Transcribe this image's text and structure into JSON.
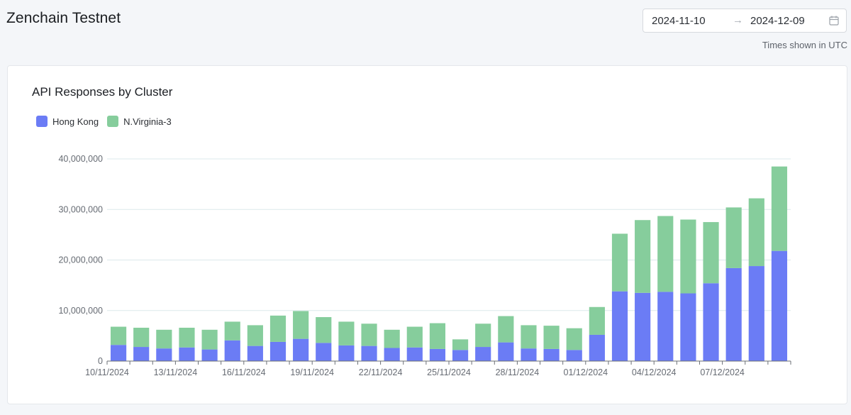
{
  "header": {
    "title": "Zenchain Testnet",
    "date_start": "2024-11-10",
    "date_arrow": "→",
    "date_end": "2024-12-09",
    "timezone_note": "Times shown in UTC",
    "calendar_icon": "calendar-icon"
  },
  "card": {
    "title": "API Responses by Cluster"
  },
  "colors": {
    "hong_kong": "#6b7cf5",
    "n_virginia": "#86cd9c",
    "grid": "#dce9ec",
    "axis": "#6b6f75"
  },
  "chart_data": {
    "type": "bar",
    "stacked": true,
    "title": "API Responses by Cluster",
    "xlabel": "",
    "ylabel": "",
    "ylim": [
      0,
      40000000
    ],
    "y_ticks": [
      "0",
      "10,000,000",
      "20,000,000",
      "30,000,000",
      "40,000,000"
    ],
    "x_tick_labels": [
      "10/11/2024",
      "13/11/2024",
      "16/11/2024",
      "19/11/2024",
      "22/11/2024",
      "25/11/2024",
      "28/11/2024",
      "01/12/2024",
      "04/12/2024",
      "07/12/2024"
    ],
    "legend_position": "top-left",
    "grid": true,
    "categories": [
      "10/11/2024",
      "11/11/2024",
      "12/11/2024",
      "13/11/2024",
      "14/11/2024",
      "15/11/2024",
      "16/11/2024",
      "17/11/2024",
      "18/11/2024",
      "19/11/2024",
      "20/11/2024",
      "21/11/2024",
      "22/11/2024",
      "23/11/2024",
      "24/11/2024",
      "25/11/2024",
      "26/11/2024",
      "27/11/2024",
      "28/11/2024",
      "29/11/2024",
      "30/11/2024",
      "01/12/2024",
      "02/12/2024",
      "03/12/2024",
      "04/12/2024",
      "05/12/2024",
      "06/12/2024",
      "07/12/2024",
      "08/12/2024",
      "09/12/2024"
    ],
    "series": [
      {
        "name": "Hong Kong",
        "values": [
          3200000,
          2800000,
          2500000,
          2700000,
          2300000,
          4100000,
          3000000,
          3800000,
          4400000,
          3600000,
          3100000,
          3000000,
          2600000,
          2700000,
          2400000,
          2200000,
          2800000,
          3700000,
          2500000,
          2400000,
          2200000,
          5200000,
          13800000,
          13500000,
          13700000,
          13400000,
          15400000,
          18400000,
          18800000,
          21800000
        ]
      },
      {
        "name": "N.Virginia-3",
        "values": [
          3600000,
          3800000,
          3700000,
          3900000,
          3900000,
          3700000,
          4100000,
          5200000,
          5500000,
          5100000,
          4700000,
          4400000,
          3600000,
          4100000,
          5100000,
          2100000,
          4600000,
          5200000,
          4600000,
          4600000,
          4300000,
          5500000,
          11400000,
          14400000,
          15000000,
          14600000,
          12100000,
          12000000,
          13400000,
          16700000
        ]
      }
    ]
  }
}
